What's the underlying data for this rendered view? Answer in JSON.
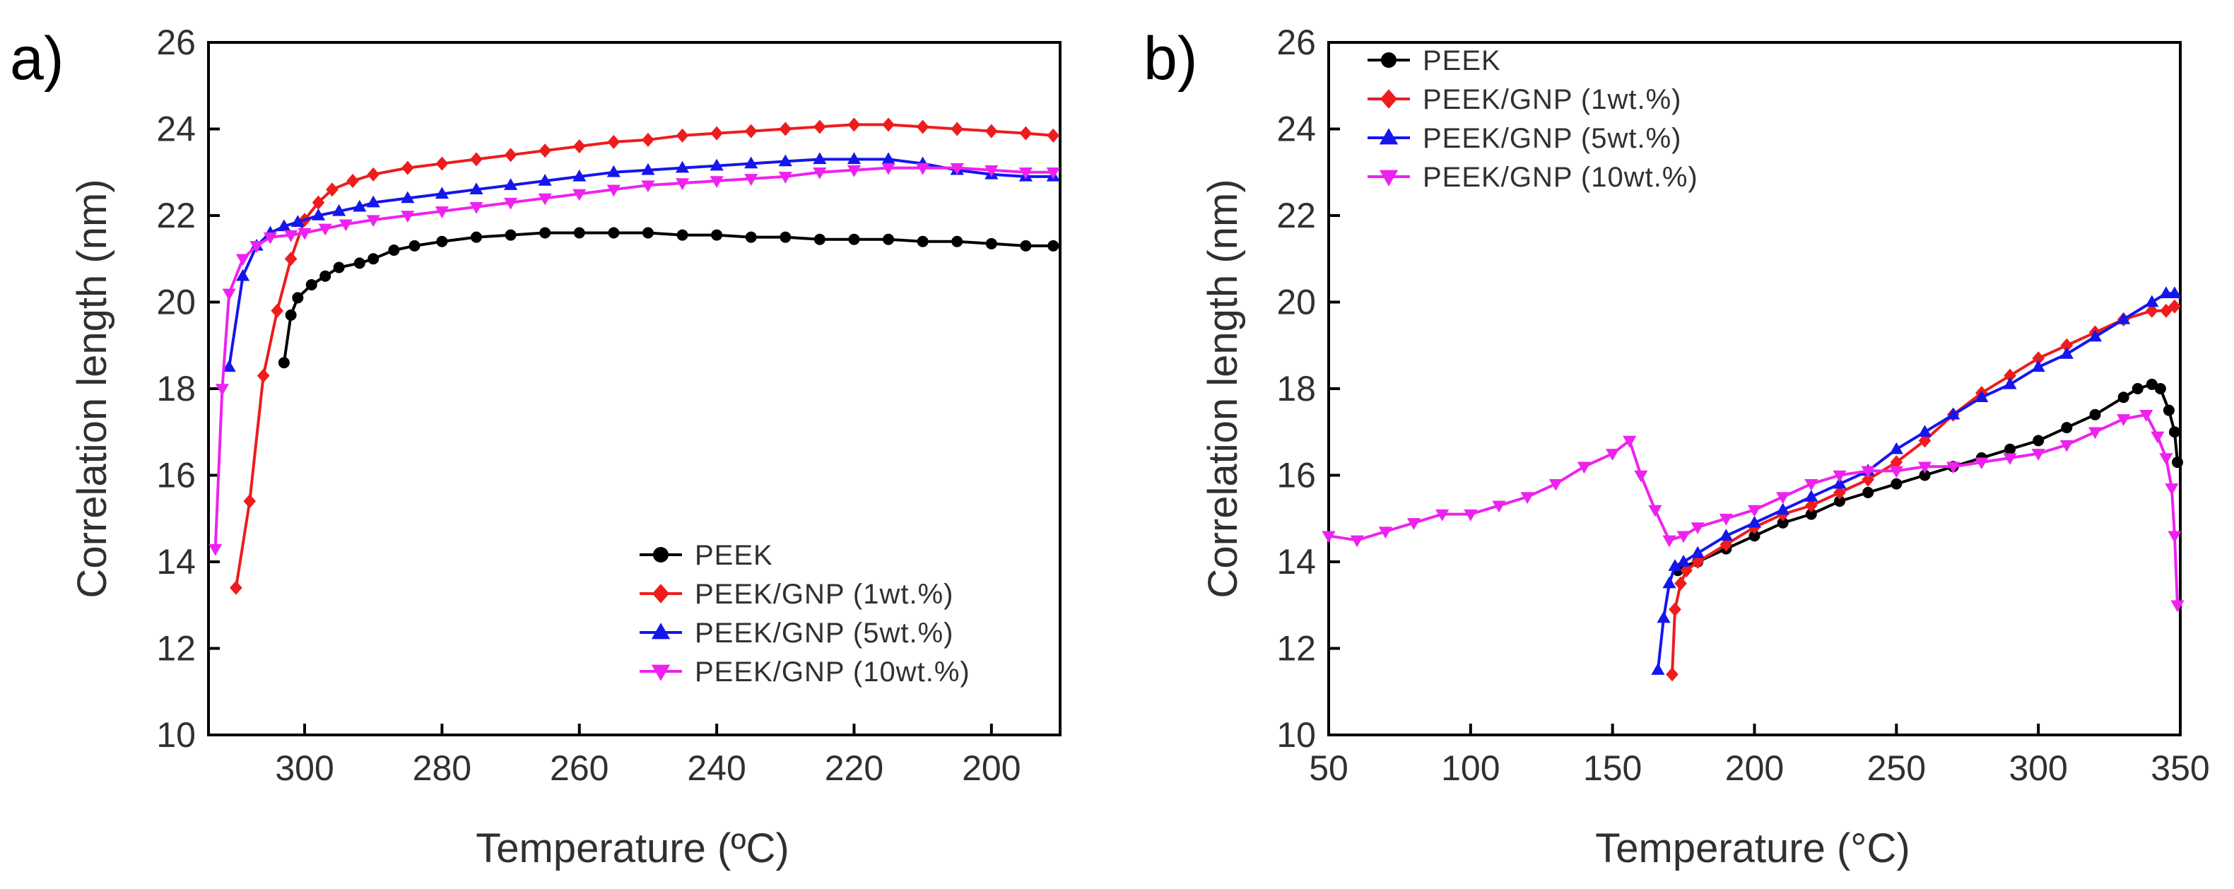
{
  "chart_data": [
    {
      "panel": "a)",
      "type": "line",
      "xlabel": "Temperature (ºC)",
      "ylabel": "Correlation length (nm)",
      "xlim": [
        314,
        190
      ],
      "ylim": [
        10,
        26
      ],
      "x_ticks": [
        300,
        280,
        260,
        240,
        220,
        200
      ],
      "y_ticks": [
        10,
        12,
        14,
        16,
        18,
        20,
        22,
        24,
        26
      ],
      "legend_position": "bottom-right",
      "series": [
        {
          "name": "PEEK",
          "color": "#000000",
          "marker": "circle",
          "x": [
            303,
            302,
            301,
            299,
            297,
            295,
            292,
            290,
            287,
            284,
            280,
            275,
            270,
            265,
            260,
            255,
            250,
            245,
            240,
            235,
            230,
            225,
            220,
            215,
            210,
            205,
            200,
            195,
            191
          ],
          "y": [
            18.6,
            19.7,
            20.1,
            20.4,
            20.6,
            20.8,
            20.9,
            21.0,
            21.2,
            21.3,
            21.4,
            21.5,
            21.55,
            21.6,
            21.6,
            21.6,
            21.6,
            21.55,
            21.55,
            21.5,
            21.5,
            21.45,
            21.45,
            21.45,
            21.4,
            21.4,
            21.35,
            21.3,
            21.3
          ]
        },
        {
          "name": "PEEK/GNP (1wt.%)",
          "color": "#ee1c1c",
          "marker": "diamond",
          "x": [
            310,
            308,
            306,
            304,
            302,
            300,
            298,
            296,
            293,
            290,
            285,
            280,
            275,
            270,
            265,
            260,
            255,
            250,
            245,
            240,
            235,
            230,
            225,
            220,
            215,
            210,
            205,
            200,
            195,
            191
          ],
          "y": [
            13.4,
            15.4,
            18.3,
            19.8,
            21.0,
            21.9,
            22.3,
            22.6,
            22.8,
            22.95,
            23.1,
            23.2,
            23.3,
            23.4,
            23.5,
            23.6,
            23.7,
            23.75,
            23.85,
            23.9,
            23.95,
            24.0,
            24.05,
            24.1,
            24.1,
            24.05,
            24.0,
            23.95,
            23.9,
            23.85
          ]
        },
        {
          "name": "PEEK/GNP (5wt.%)",
          "color": "#1515ee",
          "marker": "triangle-up",
          "x": [
            311,
            309,
            307,
            305,
            303,
            301,
            298,
            295,
            292,
            290,
            285,
            280,
            275,
            270,
            265,
            260,
            255,
            250,
            245,
            240,
            235,
            230,
            225,
            220,
            215,
            210,
            205,
            200,
            195,
            191
          ],
          "y": [
            18.5,
            20.6,
            21.3,
            21.6,
            21.75,
            21.85,
            22.0,
            22.1,
            22.2,
            22.3,
            22.4,
            22.5,
            22.6,
            22.7,
            22.8,
            22.9,
            23.0,
            23.05,
            23.1,
            23.15,
            23.2,
            23.25,
            23.3,
            23.3,
            23.3,
            23.2,
            23.05,
            22.95,
            22.9,
            22.9
          ]
        },
        {
          "name": "PEEK/GNP (10wt.%)",
          "color": "#ee22ee",
          "marker": "triangle-down",
          "x": [
            313,
            312,
            311,
            309,
            307,
            305,
            302,
            300,
            297,
            294,
            290,
            285,
            280,
            275,
            270,
            265,
            260,
            255,
            250,
            245,
            240,
            235,
            230,
            225,
            220,
            215,
            210,
            205,
            200,
            195,
            191
          ],
          "y": [
            14.3,
            18.0,
            20.2,
            21.0,
            21.3,
            21.5,
            21.55,
            21.6,
            21.7,
            21.8,
            21.9,
            22.0,
            22.1,
            22.2,
            22.3,
            22.4,
            22.5,
            22.6,
            22.7,
            22.75,
            22.8,
            22.85,
            22.9,
            23.0,
            23.05,
            23.1,
            23.1,
            23.1,
            23.05,
            23.0,
            23.0
          ]
        }
      ]
    },
    {
      "panel": "b)",
      "type": "line",
      "xlabel": "Temperature (°C)",
      "ylabel": "Correlation length (nm)",
      "xlim": [
        50,
        350
      ],
      "ylim": [
        10,
        26
      ],
      "x_ticks": [
        50,
        100,
        150,
        200,
        250,
        300,
        350
      ],
      "y_ticks": [
        10,
        12,
        14,
        16,
        18,
        20,
        22,
        24,
        26
      ],
      "legend_position": "top-left",
      "series": [
        {
          "name": "PEEK",
          "color": "#000000",
          "marker": "circle",
          "x": [
            173,
            175,
            180,
            190,
            200,
            210,
            220,
            230,
            240,
            250,
            260,
            270,
            280,
            290,
            300,
            310,
            320,
            330,
            335,
            340,
            343,
            346,
            348,
            349
          ],
          "y": [
            13.8,
            13.9,
            14.0,
            14.3,
            14.6,
            14.9,
            15.1,
            15.4,
            15.6,
            15.8,
            16.0,
            16.2,
            16.4,
            16.6,
            16.8,
            17.1,
            17.4,
            17.8,
            18.0,
            18.1,
            18.0,
            17.5,
            17.0,
            16.3
          ]
        },
        {
          "name": "PEEK/GNP (1wt.%)",
          "color": "#ee1c1c",
          "marker": "diamond",
          "x": [
            171,
            172,
            174,
            176,
            180,
            190,
            200,
            210,
            220,
            230,
            240,
            250,
            260,
            270,
            280,
            290,
            300,
            310,
            320,
            330,
            340,
            345,
            348
          ],
          "y": [
            11.4,
            12.9,
            13.5,
            13.8,
            14.0,
            14.4,
            14.8,
            15.1,
            15.3,
            15.6,
            15.9,
            16.3,
            16.8,
            17.4,
            17.9,
            18.3,
            18.7,
            19.0,
            19.3,
            19.6,
            19.8,
            19.8,
            19.9
          ]
        },
        {
          "name": "PEEK/GNP (5wt.%)",
          "color": "#1515ee",
          "marker": "triangle-up",
          "x": [
            166,
            168,
            170,
            172,
            175,
            180,
            190,
            200,
            210,
            220,
            230,
            240,
            250,
            260,
            270,
            280,
            290,
            300,
            310,
            320,
            330,
            340,
            345,
            348
          ],
          "y": [
            11.5,
            12.7,
            13.5,
            13.9,
            14.0,
            14.2,
            14.6,
            14.9,
            15.2,
            15.5,
            15.8,
            16.1,
            16.6,
            17.0,
            17.4,
            17.8,
            18.1,
            18.5,
            18.8,
            19.2,
            19.6,
            20.0,
            20.2,
            20.2
          ]
        },
        {
          "name": "PEEK/GNP (10wt.%)",
          "color": "#ee22ee",
          "marker": "triangle-down",
          "x": [
            50,
            60,
            70,
            80,
            90,
            100,
            110,
            120,
            130,
            140,
            150,
            156,
            160,
            165,
            170,
            175,
            180,
            190,
            200,
            210,
            220,
            230,
            240,
            250,
            260,
            270,
            280,
            290,
            300,
            310,
            320,
            330,
            338,
            342,
            345,
            347,
            348,
            349
          ],
          "y": [
            14.6,
            14.5,
            14.7,
            14.9,
            15.1,
            15.1,
            15.3,
            15.5,
            15.8,
            16.2,
            16.5,
            16.8,
            16.0,
            15.2,
            14.5,
            14.6,
            14.8,
            15.0,
            15.2,
            15.5,
            15.8,
            16.0,
            16.1,
            16.1,
            16.2,
            16.2,
            16.3,
            16.4,
            16.5,
            16.7,
            17.0,
            17.3,
            17.4,
            16.9,
            16.4,
            15.7,
            14.6,
            13.0
          ]
        }
      ]
    }
  ]
}
